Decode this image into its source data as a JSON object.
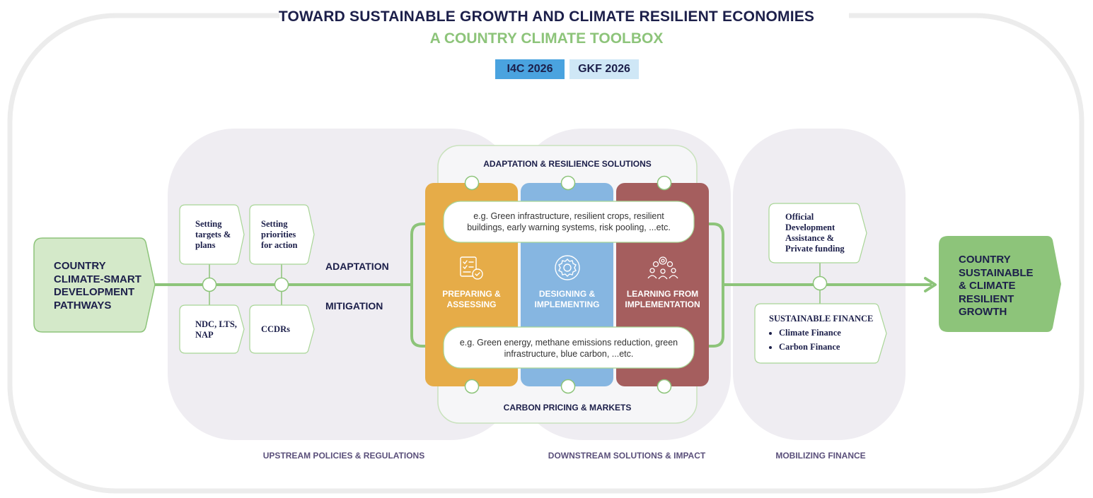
{
  "header": {
    "title": "TOWARD SUSTAINABLE GROWTH AND CLIMATE RESILIENT ECONOMIES",
    "subtitle": "A COUNTRY CLIMATE TOOLBOX",
    "tags": [
      "I4C 2026",
      "GKF 2026"
    ]
  },
  "start_node": "COUNTRY CLIMATE-SMART DEVELOPMENT PATHWAYS",
  "end_node": "COUNTRY SUSTAINABLE & CLIMATE RESILIENT GROWTH",
  "upstream": {
    "boxes_top": [
      "Setting targets & plans",
      "Setting priorities for action"
    ],
    "boxes_bottom": [
      "NDC, LTS, NAP",
      "CCDRs"
    ],
    "adaptation_label": "ADAPTATION",
    "mitigation_label": "MITIGATION",
    "caption": "UPSTREAM POLICIES & REGULATIONS"
  },
  "downstream": {
    "top_label": "ADAPTATION & RESILIENCE SOLUTIONS",
    "bottom_label": "CARBON PRICING & MARKETS",
    "adaptation_examples": "e.g. Green infrastructure, resilient crops, resilient buildings, early warning systems, risk pooling, ...etc.",
    "mitigation_examples": "e.g. Green energy, methane emissions reduction, green infrastructure,  blue carbon, ...etc.",
    "columns": [
      {
        "label": "PREPARING & ASSESSING",
        "color": "#e6ac48",
        "icon": "checklist-icon"
      },
      {
        "label": "DESIGNING & IMPLEMENTING",
        "color": "#86b6e1",
        "icon": "gear-icon"
      },
      {
        "label": "LEARNING FROM IMPLEMENTATION",
        "color": "#a55e5e",
        "icon": "team-gears-icon"
      }
    ],
    "caption": "DOWNSTREAM SOLUTIONS & IMPACT"
  },
  "finance": {
    "top_box": "Official Development Assistance & Private funding",
    "bottom_title": "SUSTAINABLE FINANCE",
    "bottom_items": [
      "Climate Finance",
      "Carbon Finance"
    ],
    "caption": "MOBILIZING FINANCE"
  },
  "colors": {
    "navy": "#1c1f4a",
    "green": "#8dc47a",
    "light_green": "#d4e9c9",
    "gray_blob": "#efedf2"
  }
}
